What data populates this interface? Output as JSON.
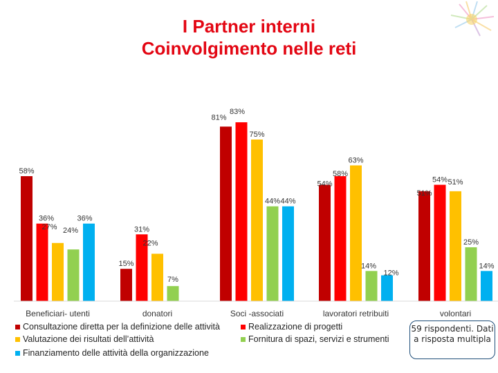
{
  "title_line1": "I Partner interni",
  "title_line2": "Coinvolgimento nelle reti",
  "note": "59 rispondenti. Dati a risposta multipla",
  "chart_data": {
    "type": "bar",
    "categories": [
      "Beneficiari- utenti",
      "donatori",
      "Soci -associati",
      "lavoratori retribuiti",
      "volontari"
    ],
    "series": [
      {
        "name": "Consultazione diretta per la definizione delle attività",
        "color": "#c00000",
        "values": [
          58,
          15,
          81,
          54,
          51
        ]
      },
      {
        "name": "Realizzazione di progetti",
        "color": "#ff0000",
        "values": [
          36,
          31,
          83,
          58,
          54
        ]
      },
      {
        "name": "Valutazione dei risultati dell’attività",
        "color": "#ffc000",
        "values": [
          27,
          22,
          75,
          63,
          51
        ]
      },
      {
        "name": "Fornitura  di spazi, servizi e strumenti",
        "color": "#92d050",
        "values": [
          24,
          7,
          44,
          14,
          25
        ]
      },
      {
        "name": "Finanziamento delle attività della organizzazione",
        "color": "#00b0f0",
        "values": [
          36,
          0,
          44,
          12,
          14
        ]
      }
    ],
    "value_labels": [
      [
        "58%",
        "36%",
        "27%",
        "24%",
        "36%"
      ],
      [
        "15%",
        "31%",
        "22%",
        "7%",
        ""
      ],
      [
        "81%",
        "83%",
        "75%",
        "44%",
        "44%"
      ],
      [
        "54%",
        "58%",
        "63%",
        "14%",
        "12%"
      ],
      [
        "51%",
        "54%",
        "51%",
        "25%",
        "14%"
      ]
    ],
    "ylim": [
      0,
      100
    ],
    "grid": false,
    "legend_position": "bottom"
  }
}
